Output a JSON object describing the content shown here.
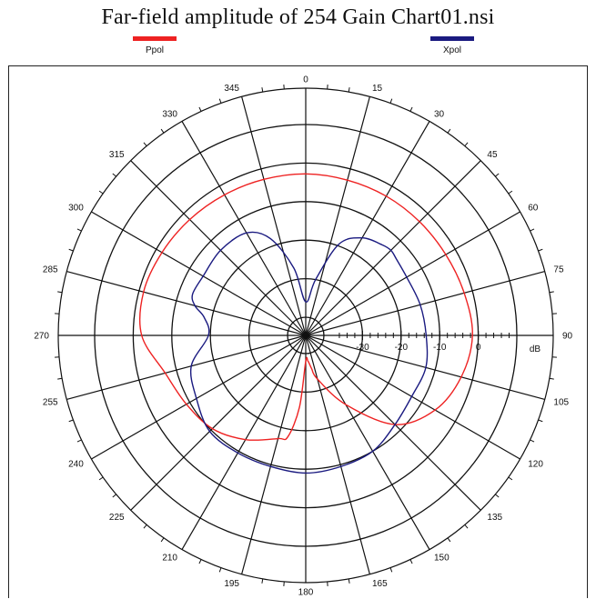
{
  "title": "Far-field amplitude of 254 Gain Chart01.nsi",
  "legend": [
    {
      "name": "Ppol",
      "color": "#ee2222"
    },
    {
      "name": "Xpol",
      "color": "#1a1a80"
    }
  ],
  "chart_data": {
    "type": "polar-line",
    "title": "Far-field amplitude of 254 Gain Chart01.nsi",
    "angle_unit": "deg",
    "angle_labels": [
      "0",
      "15",
      "30",
      "45",
      "60",
      "75",
      "90",
      "105",
      "120",
      "135",
      "150",
      "165",
      "180",
      "195",
      "210",
      "225",
      "240",
      "255",
      "270",
      "285",
      "300",
      "315",
      "330",
      "345"
    ],
    "radial_unit_label": "dB",
    "radial_ticks": [
      -30,
      -20,
      -10,
      0
    ],
    "rlim": [
      -40,
      10
    ],
    "grid": true,
    "legend_position": "top",
    "series": [
      {
        "name": "Ppol",
        "color": "#ee2222",
        "theta": [
          0,
          15,
          30,
          45,
          60,
          75,
          90,
          105,
          120,
          135,
          150,
          165,
          170,
          175,
          180,
          185,
          190,
          195,
          210,
          225,
          240,
          255,
          270,
          285,
          300,
          315,
          330,
          345
        ],
        "r_db": [
          -2.8,
          -3.0,
          -3.0,
          -3.0,
          -2.8,
          -2.2,
          -1.5,
          -3.0,
          -6.0,
          -12.0,
          -24.0,
          -33.0,
          -36.0,
          -38.0,
          -38.0,
          -26.0,
          -18.0,
          -17.0,
          -13.5,
          -10.5,
          -9.0,
          -7.0,
          -2.2,
          -1.2,
          -1.7,
          -2.2,
          -2.6,
          -2.8
        ]
      },
      {
        "name": "Xpol",
        "color": "#1a1a80",
        "theta": [
          0,
          10,
          20,
          30,
          40,
          45,
          50,
          60,
          75,
          90,
          105,
          120,
          135,
          150,
          165,
          180,
          195,
          210,
          225,
          240,
          255,
          270,
          280,
          285,
          290,
          300,
          315,
          330,
          340,
          350
        ],
        "r_db": [
          -36.0,
          -30.0,
          -19.5,
          -15.5,
          -14.0,
          -13.5,
          -14.0,
          -14.5,
          -14.0,
          -13.5,
          -12.5,
          -13.0,
          -12.0,
          -10.0,
          -9.5,
          -9.0,
          -9.5,
          -9.5,
          -9.5,
          -12.0,
          -14.0,
          -19.5,
          -18.0,
          -15.0,
          -13.5,
          -14.0,
          -13.5,
          -14.0,
          -18.0,
          -27.0
        ]
      }
    ]
  }
}
